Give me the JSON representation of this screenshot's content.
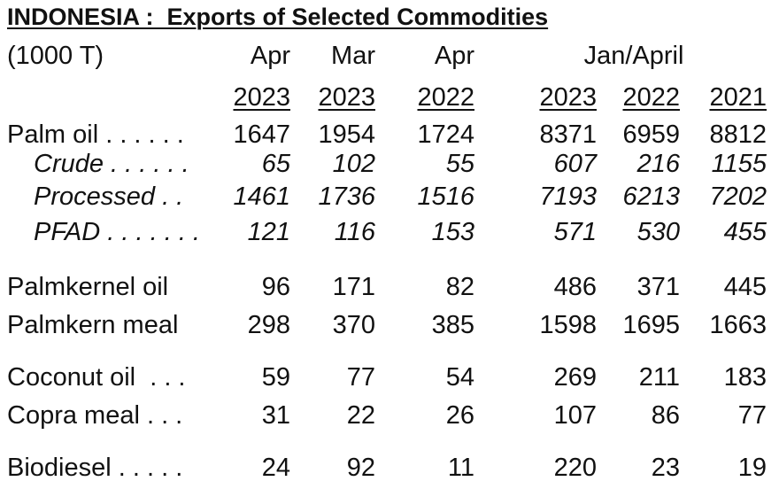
{
  "title": "INDONESIA :  Exports of Selected Commodities",
  "units": "(1000 T)",
  "header": {
    "period_labels": [
      "Apr",
      "Mar",
      "Apr"
    ],
    "range_label": "Jan/April",
    "years": [
      "2023",
      "2023",
      "2022",
      "2023",
      "2022",
      "2021"
    ]
  },
  "rows": [
    {
      "label": "Palm oil . . . . . .",
      "italic": false,
      "values": [
        "1647",
        "1954",
        "1724",
        "8371",
        "6959",
        "8812"
      ]
    },
    {
      "label": "Crude . . . . . .",
      "italic": true,
      "values": [
        "65",
        "102",
        "55",
        "607",
        "216",
        "1155"
      ]
    },
    {
      "label": "Processed . .",
      "italic": true,
      "values": [
        "1461",
        "1736",
        "1516",
        "7193",
        "6213",
        "7202"
      ]
    },
    {
      "label": "PFAD . . . . . . .",
      "italic": true,
      "values": [
        "121",
        "116",
        "153",
        "571",
        "530",
        "455"
      ]
    },
    {
      "label": "Palmkernel oil",
      "italic": false,
      "values": [
        "96",
        "171",
        "82",
        "486",
        "371",
        "445"
      ]
    },
    {
      "label": "Palmkern meal",
      "italic": false,
      "values": [
        "298",
        "370",
        "385",
        "1598",
        "1695",
        "1663"
      ]
    },
    {
      "label": "Coconut oil  . . .",
      "italic": false,
      "values": [
        "59",
        "77",
        "54",
        "269",
        "211",
        "183"
      ]
    },
    {
      "label": "Copra meal . . .",
      "italic": false,
      "values": [
        "31",
        "22",
        "26",
        "107",
        "86",
        "77"
      ]
    },
    {
      "label": "Biodiesel . . . . .",
      "italic": false,
      "values": [
        "24",
        "92",
        "11",
        "220",
        "23",
        "19"
      ]
    }
  ]
}
